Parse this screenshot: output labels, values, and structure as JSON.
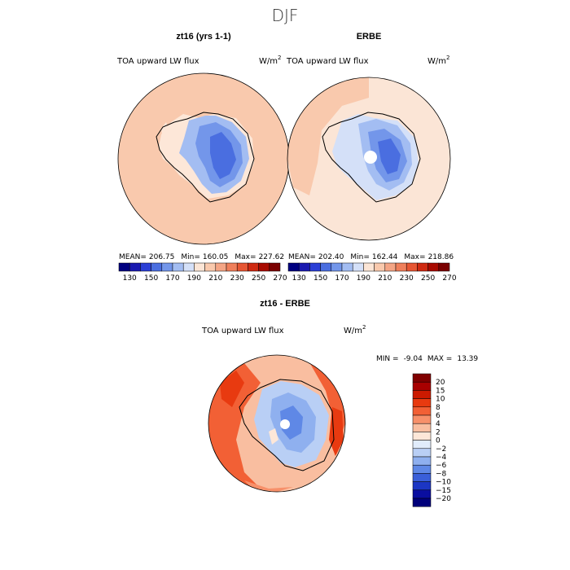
{
  "page_title": "DJF",
  "chart_data": [
    {
      "type": "heatmap",
      "title": "zt16 (yrs 1-1)",
      "subtitle_left": "TOA upward LW flux",
      "units": "W/m",
      "units_sup": "2",
      "stats": {
        "mean_label": "MEAN=",
        "mean": "206.75",
        "min_label": "Min=",
        "min": "160.05",
        "max_label": "Max=",
        "max": "227.62"
      },
      "colorbar_ticks": [
        "130",
        "150",
        "170",
        "190",
        "210",
        "230",
        "250",
        "270"
      ],
      "projection": "polar-stereographic-south"
    },
    {
      "type": "heatmap",
      "title": "ERBE",
      "subtitle_left": "TOA upward LW flux",
      "units": "W/m",
      "units_sup": "2",
      "stats": {
        "mean_label": "MEAN=",
        "mean": "202.40",
        "min_label": "Min=",
        "min": "162.44",
        "max_label": "Max=",
        "max": "218.86"
      },
      "colorbar_ticks": [
        "130",
        "150",
        "170",
        "190",
        "210",
        "230",
        "250",
        "270"
      ],
      "projection": "polar-stereographic-south"
    },
    {
      "type": "heatmap",
      "title": "zt16 - ERBE",
      "subtitle_left": "TOA upward LW flux",
      "units": "W/m",
      "units_sup": "2",
      "stats": {
        "min_label": "MIN =",
        "min": "-9.04",
        "max_label": "MAX =",
        "max": "13.39"
      },
      "colorbar_ticks": [
        "20",
        "15",
        "10",
        "8",
        "6",
        "4",
        "2",
        "0",
        "−2",
        "−4",
        "−6",
        "−8",
        "−10",
        "−15",
        "−20"
      ],
      "projection": "polar-stereographic-south"
    }
  ],
  "colors": {
    "abs_scale": [
      "#000080",
      "#1a1ab0",
      "#2b3fd6",
      "#4a6ee0",
      "#7396ea",
      "#a3bdf2",
      "#d4e0f8",
      "#fbe5d6",
      "#f9c9ad",
      "#f4a585",
      "#ef7f5b",
      "#e65633",
      "#cf2a12",
      "#a80a00",
      "#7a0000"
    ],
    "diff_scale": [
      "#800000",
      "#a80000",
      "#cc1a00",
      "#e83a10",
      "#f26035",
      "#f7906a",
      "#f9bea0",
      "#fde7d8",
      "#e1ecfb",
      "#b9cff5",
      "#8fb0ef",
      "#5f88e6",
      "#3a5fd9",
      "#1c36c4",
      "#0a0ea0",
      "#00007a"
    ],
    "antarctica_coast": "#000000"
  }
}
